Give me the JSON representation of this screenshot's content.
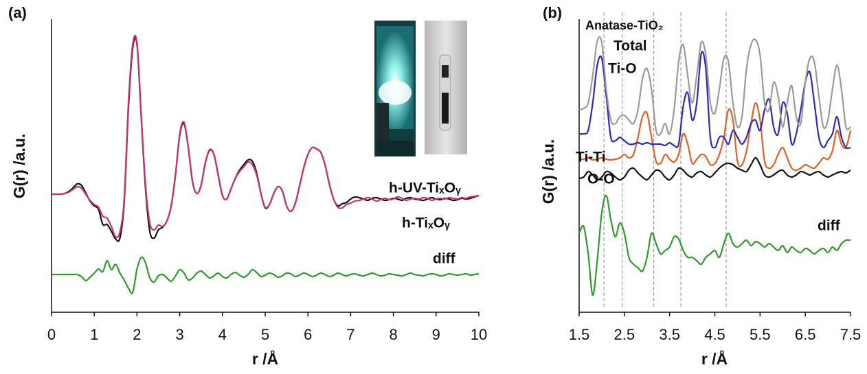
{
  "chart_data": [
    {
      "type": "line",
      "panel_label": "(a)",
      "xlabel": "r /Å",
      "ylabel": "G(r) /a.u.",
      "xlim": [
        0,
        10
      ],
      "ylim": [
        0,
        427
      ],
      "xticks": [
        0,
        1,
        2,
        3,
        4,
        5,
        6,
        7,
        8,
        9,
        10
      ],
      "x": [
        0,
        0.1,
        0.2,
        0.3,
        0.4,
        0.5,
        0.6,
        0.7,
        0.8,
        0.9,
        1,
        1.1,
        1.2,
        1.3,
        1.4,
        1.5,
        1.6,
        1.7,
        1.8,
        1.9,
        2,
        2.1,
        2.2,
        2.3,
        2.4,
        2.5,
        2.6,
        2.7,
        2.8,
        2.9,
        3,
        3.1,
        3.2,
        3.3,
        3.4,
        3.5,
        3.6,
        3.7,
        3.8,
        3.9,
        4,
        4.1,
        4.2,
        4.3,
        4.4,
        4.5,
        4.6,
        4.7,
        4.8,
        4.9,
        5,
        5.1,
        5.2,
        5.3,
        5.4,
        5.5,
        5.6,
        5.7,
        5.8,
        5.9,
        6,
        6.1,
        6.2,
        6.3,
        6.4,
        6.5,
        6.6,
        6.7,
        6.8,
        6.9,
        7,
        7.1,
        7.2,
        7.3,
        7.4,
        7.5,
        7.6,
        7.7,
        7.8,
        7.9,
        8,
        8.1,
        8.2,
        8.3,
        8.4,
        8.5,
        8.6,
        8.7,
        8.8,
        8.9,
        9,
        9.1,
        9.2,
        9.3,
        9.4,
        9.5,
        9.6,
        9.7,
        9.8,
        9.9,
        10
      ],
      "series": [
        {
          "name": "h-UV-TiₓOᵧ",
          "color": "#c8336f",
          "values": [
            172,
            172,
            172,
            173,
            175,
            179,
            183,
            181,
            172,
            163,
            157,
            153,
            140,
            137,
            125,
            110,
            117,
            165,
            305,
            390,
            392,
            285,
            185,
            130,
            120,
            127,
            125,
            133,
            155,
            200,
            260,
            277,
            240,
            190,
            173,
            185,
            218,
            237,
            230,
            200,
            170,
            165,
            180,
            195,
            205,
            212,
            219,
            215,
            200,
            173,
            153,
            157,
            173,
            183,
            177,
            155,
            147,
            158,
            183,
            210,
            230,
            240,
            238,
            233,
            215,
            187,
            165,
            153,
            152,
            157,
            159,
            162,
            163,
            165,
            167,
            165,
            162,
            164,
            166,
            164,
            165,
            168,
            166,
            163,
            165,
            166,
            165,
            167,
            166,
            163,
            165,
            166,
            165,
            167,
            166,
            165,
            167,
            166,
            168,
            169,
            170
          ]
        },
        {
          "name": "h-TiₓOᵧ",
          "color": "#111111",
          "values": [
            172,
            172,
            172,
            173,
            176,
            181,
            187,
            185,
            174,
            162,
            155,
            150,
            128,
            128,
            118,
            107,
            108,
            160,
            298,
            385,
            390,
            283,
            180,
            118,
            108,
            120,
            124,
            133,
            155,
            200,
            258,
            275,
            240,
            190,
            173,
            185,
            218,
            236,
            230,
            200,
            170,
            165,
            180,
            195,
            207,
            215,
            222,
            220,
            203,
            173,
            152,
            157,
            173,
            183,
            177,
            155,
            147,
            158,
            183,
            210,
            230,
            240,
            238,
            233,
            215,
            187,
            165,
            155,
            158,
            160,
            165,
            168,
            167,
            165,
            163,
            166,
            167,
            165,
            163,
            164,
            166,
            165,
            163,
            166,
            167,
            165,
            164,
            163,
            165,
            167,
            165,
            164,
            166,
            165,
            163,
            164,
            166,
            165,
            166,
            168,
            170
          ]
        },
        {
          "name": "diff",
          "color": "#2e9a2e",
          "values": [
            55,
            55,
            55,
            55,
            55,
            55,
            55,
            52,
            46,
            51,
            57,
            63,
            59,
            75,
            62,
            70,
            57,
            47,
            35,
            29,
            63,
            80,
            72,
            50,
            44,
            53,
            55,
            50,
            45,
            53,
            62,
            57,
            47,
            50,
            57,
            60,
            55,
            50,
            53,
            57,
            52,
            50,
            55,
            58,
            54,
            51,
            55,
            62,
            58,
            52,
            54,
            57,
            55,
            51,
            53,
            57,
            56,
            52,
            54,
            57,
            55,
            52,
            54,
            57,
            55,
            52,
            54,
            57,
            55,
            53,
            55,
            56,
            54,
            53,
            55,
            57,
            55,
            53,
            54,
            56,
            55,
            54,
            53,
            55,
            57,
            55,
            54,
            53,
            55,
            56,
            55,
            53,
            54,
            56,
            55,
            54,
            55,
            56,
            54,
            55,
            56
          ]
        }
      ]
    },
    {
      "type": "line",
      "panel_label": "(b)",
      "xlabel": "r /Å",
      "ylabel": "G(r) /a.u.",
      "annotation": "Anatase-TiO₂",
      "xlim": [
        1.5,
        7.5
      ],
      "ylim": [
        0,
        427
      ],
      "xticks": [
        1.5,
        2.5,
        3.5,
        4.5,
        5.5,
        6.5,
        7.5
      ],
      "reference_lines": [
        2.05,
        2.45,
        3.15,
        3.75,
        4.75
      ],
      "x": [
        1.5,
        1.6,
        1.7,
        1.8,
        1.9,
        2,
        2.1,
        2.2,
        2.3,
        2.4,
        2.5,
        2.6,
        2.7,
        2.8,
        2.9,
        3,
        3.1,
        3.2,
        3.3,
        3.4,
        3.5,
        3.6,
        3.7,
        3.8,
        3.9,
        4,
        4.1,
        4.2,
        4.3,
        4.4,
        4.5,
        4.6,
        4.7,
        4.8,
        4.9,
        5,
        5.1,
        5.2,
        5.3,
        5.4,
        5.5,
        5.6,
        5.7,
        5.8,
        5.9,
        6,
        6.1,
        6.2,
        6.3,
        6.4,
        6.5,
        6.6,
        6.7,
        6.8,
        6.9,
        7,
        7.1,
        7.2,
        7.3,
        7.4,
        7.5
      ],
      "series": [
        {
          "name": "Total",
          "color": "#9a9a9a",
          "values": [
            295,
            297,
            305,
            345,
            395,
            393,
            325,
            280,
            275,
            285,
            287,
            280,
            275,
            295,
            340,
            355,
            325,
            265,
            260,
            275,
            260,
            295,
            365,
            390,
            345,
            305,
            345,
            393,
            375,
            305,
            290,
            325,
            370,
            365,
            305,
            270,
            285,
            355,
            390,
            397,
            375,
            305,
            295,
            335,
            315,
            270,
            305,
            330,
            285,
            275,
            335,
            370,
            365,
            315,
            270,
            280,
            325,
            360,
            325,
            270,
            270
          ]
        },
        {
          "name": "Ti-O",
          "color": "#2a2ab8",
          "values": [
            260,
            260,
            265,
            305,
            360,
            370,
            315,
            255,
            250,
            255,
            250,
            245,
            245,
            247,
            245,
            247,
            245,
            245,
            245,
            243,
            247,
            243,
            245,
            300,
            320,
            280,
            305,
            377,
            355,
            255,
            240,
            255,
            255,
            245,
            265,
            255,
            245,
            255,
            275,
            280,
            265,
            295,
            310,
            270,
            260,
            305,
            290,
            245,
            260,
            295,
            335,
            350,
            305,
            255,
            240,
            250,
            260,
            285,
            255,
            240,
            240
          ]
        },
        {
          "name": "Ti-Ti",
          "color": "#e0602a",
          "values": [
            223,
            223,
            225,
            222,
            223,
            225,
            223,
            222,
            223,
            225,
            230,
            225,
            230,
            255,
            285,
            290,
            255,
            220,
            217,
            230,
            223,
            219,
            230,
            260,
            245,
            217,
            223,
            230,
            227,
            215,
            217,
            230,
            255,
            295,
            280,
            220,
            215,
            235,
            275,
            305,
            280,
            220,
            210,
            215,
            230,
            240,
            225,
            210,
            207,
            210,
            215,
            212,
            210,
            217,
            225,
            223,
            235,
            265,
            245,
            240,
            265
          ]
        },
        {
          "name": "O-O",
          "color": "#111111",
          "values": [
            195,
            197,
            205,
            200,
            193,
            197,
            205,
            203,
            197,
            193,
            197,
            207,
            210,
            203,
            197,
            193,
            200,
            207,
            205,
            197,
            193,
            200,
            210,
            207,
            200,
            197,
            203,
            205,
            200,
            197,
            203,
            210,
            215,
            217,
            215,
            210,
            207,
            205,
            215,
            225,
            215,
            200,
            197,
            200,
            205,
            207,
            200,
            197,
            200,
            205,
            203,
            200,
            203,
            205,
            200,
            197,
            200,
            203,
            205,
            203,
            207
          ]
        },
        {
          "name": "diff",
          "color": "#2e9a2e",
          "values": [
            115,
            125,
            85,
            25,
            75,
            145,
            170,
            135,
            110,
            130,
            115,
            80,
            70,
            65,
            60,
            80,
            115,
            100,
            85,
            90,
            95,
            110,
            107,
            90,
            80,
            80,
            75,
            70,
            80,
            85,
            90,
            80,
            100,
            115,
            100,
            95,
            100,
            105,
            97,
            103,
            100,
            95,
            100,
            95,
            90,
            97,
            87,
            95,
            90,
            87,
            93,
            90,
            85,
            90,
            93,
            87,
            95,
            90,
            100,
            105,
            105
          ]
        }
      ]
    }
  ]
}
